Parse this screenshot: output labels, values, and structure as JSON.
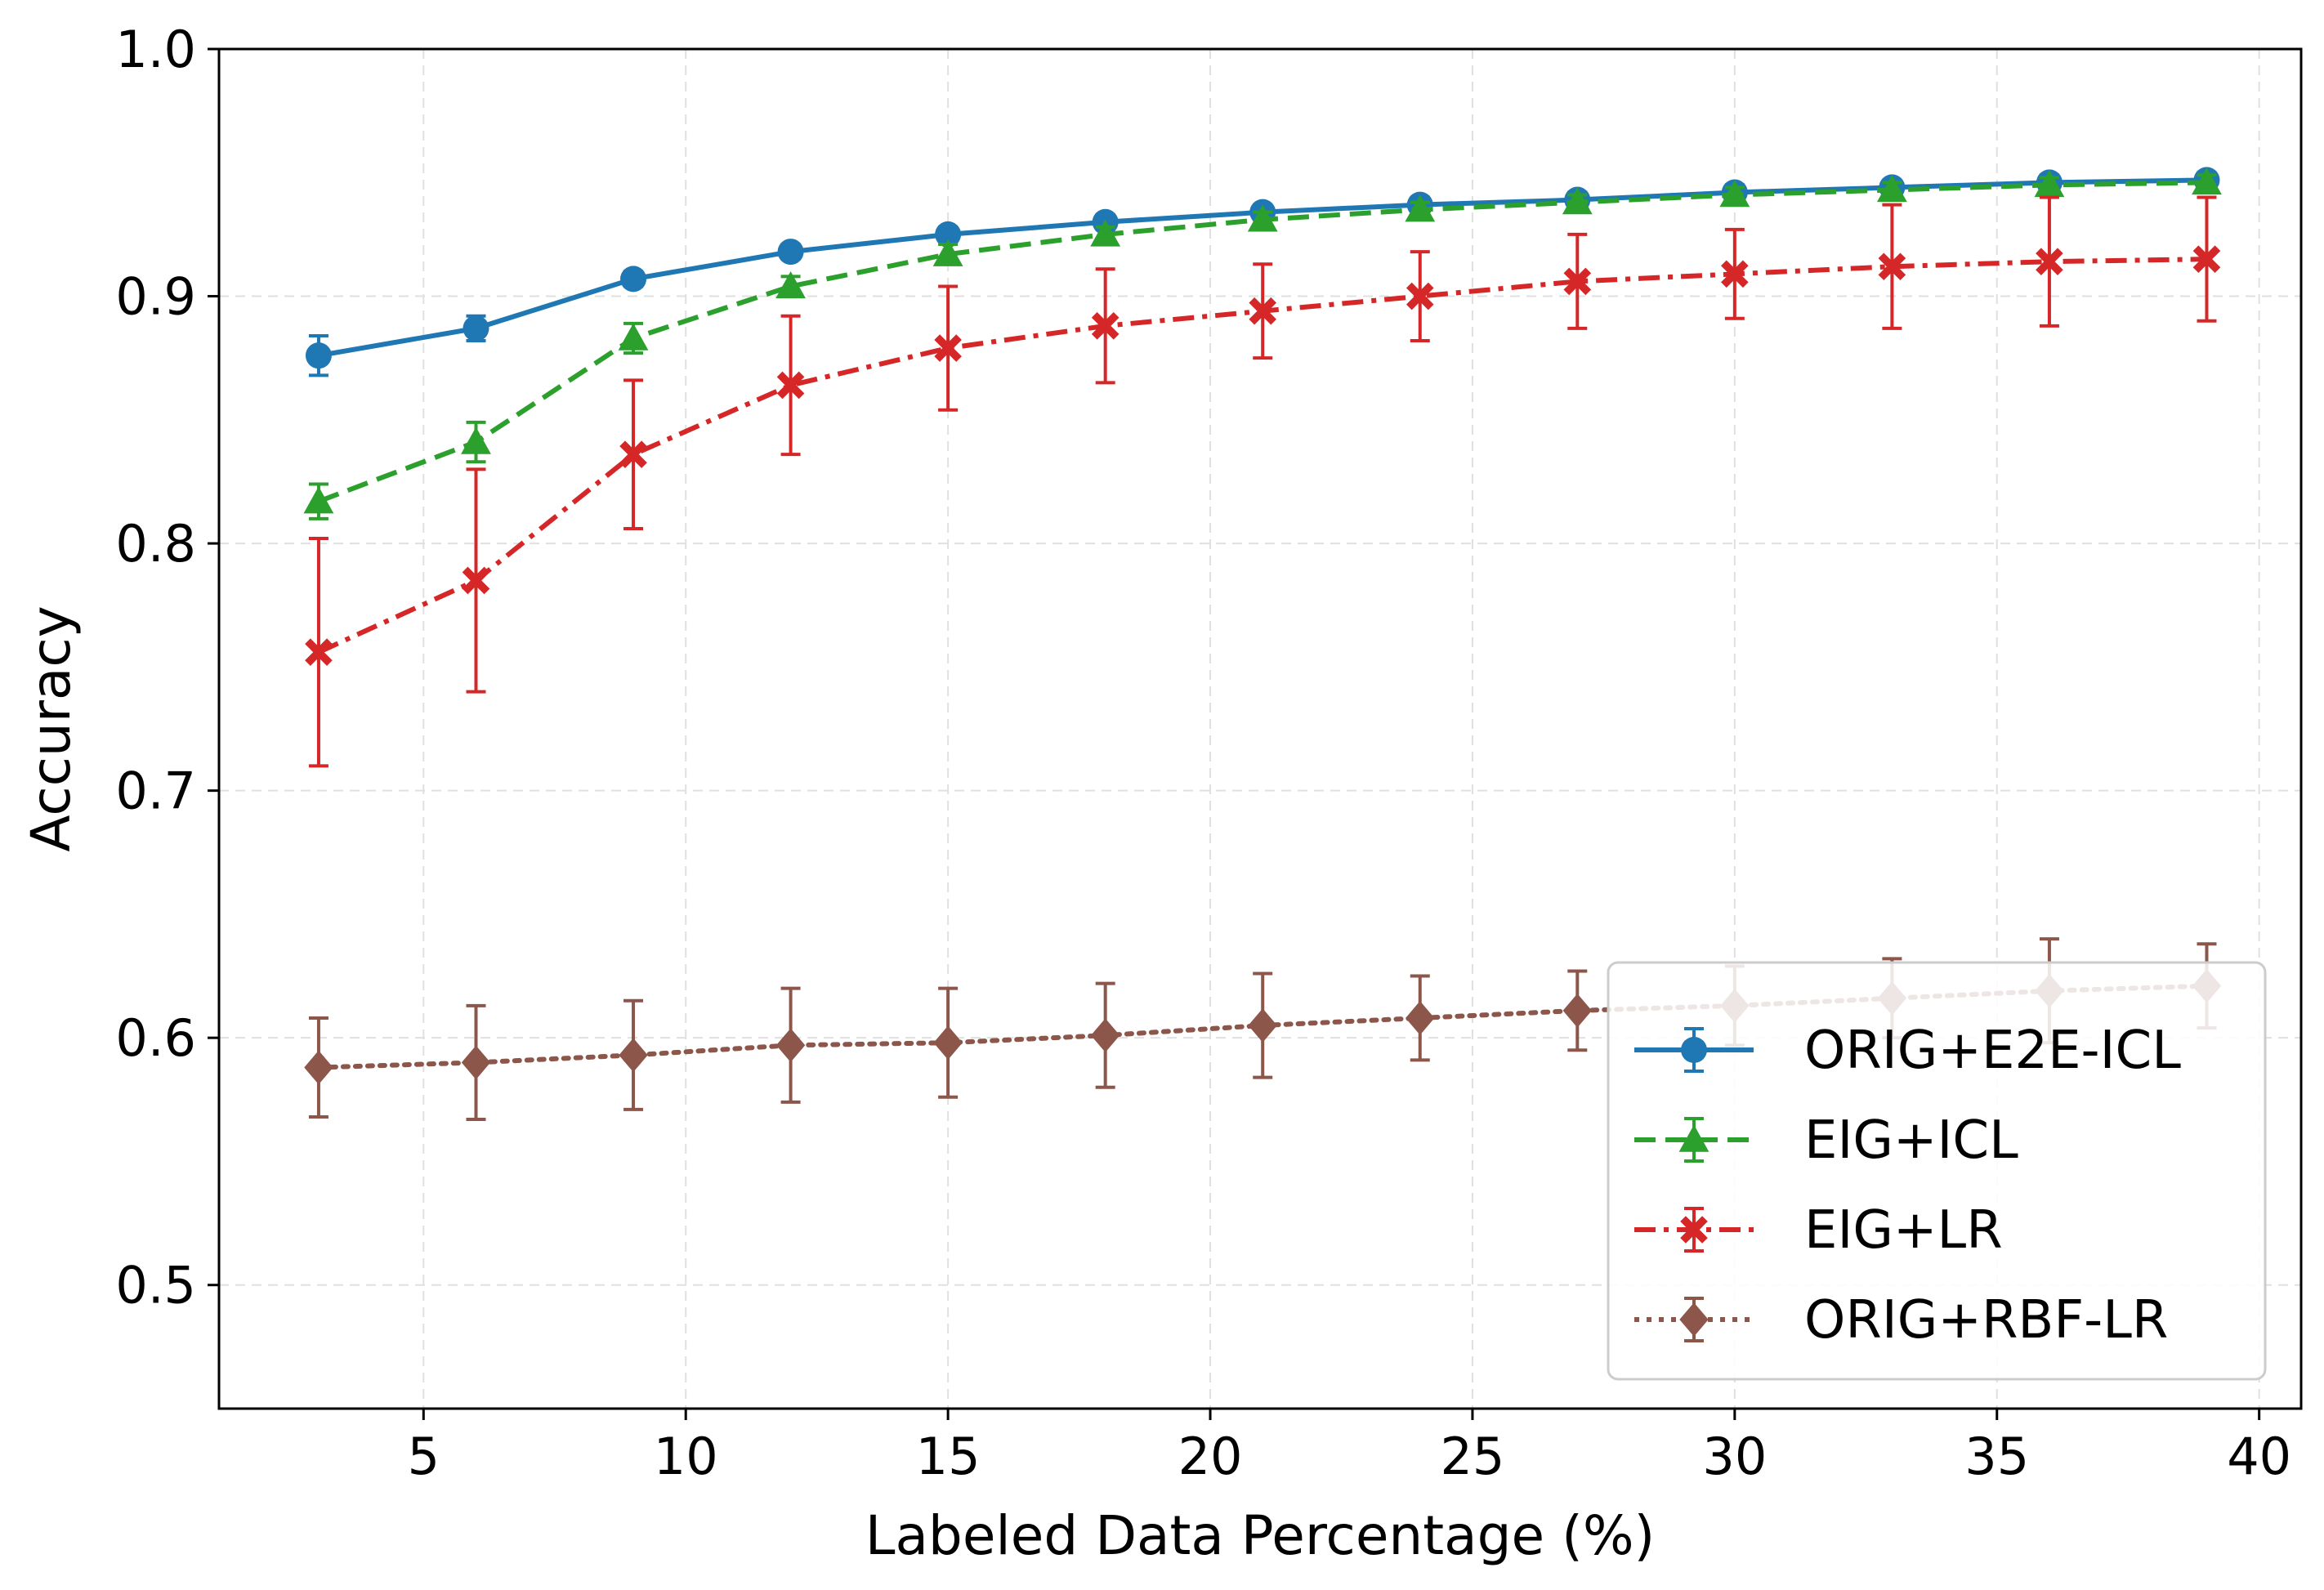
{
  "chart_data": {
    "type": "line",
    "xlabel": "Labeled Data Percentage (%)",
    "ylabel": "Accuracy",
    "xlim": [
      1.1,
      40.8
    ],
    "ylim": [
      0.45,
      1.0
    ],
    "grid": true,
    "legend_position": "bottom-right",
    "x_ticks": [
      5,
      10,
      15,
      20,
      25,
      30,
      35,
      40
    ],
    "x_tick_labels": [
      "5",
      "10",
      "15",
      "20",
      "25",
      "30",
      "35",
      "40"
    ],
    "y_ticks": [
      0.5,
      0.6,
      0.7,
      0.8,
      0.9,
      1.0
    ],
    "y_tick_labels": [
      "0.5",
      "0.6",
      "0.7",
      "0.8",
      "0.9",
      "1.0"
    ],
    "x": [
      3,
      6,
      9,
      12,
      15,
      18,
      21,
      24,
      27,
      30,
      33,
      36,
      39
    ],
    "series": [
      {
        "name": "ORIG+E2E-ICL",
        "color": "#1f77b4",
        "line_style": "solid",
        "marker": "circle",
        "values": [
          0.876,
          0.887,
          0.907,
          0.918,
          0.925,
          0.93,
          0.934,
          0.937,
          0.939,
          0.942,
          0.944,
          0.946,
          0.947
        ],
        "errors": [
          0.008,
          0.005,
          0.003,
          0.003,
          0.003,
          0.003,
          0.003,
          0.003,
          0.003,
          0.003,
          0.003,
          0.003,
          0.003
        ]
      },
      {
        "name": "EIG+ICL",
        "color": "#2ca02c",
        "line_style": "dashed",
        "marker": "triangle",
        "values": [
          0.817,
          0.841,
          0.883,
          0.904,
          0.917,
          0.925,
          0.931,
          0.935,
          0.938,
          0.941,
          0.943,
          0.945,
          0.946
        ],
        "errors": [
          0.007,
          0.008,
          0.006,
          0.004,
          0.004,
          0.003,
          0.003,
          0.003,
          0.003,
          0.003,
          0.003,
          0.003,
          0.003
        ]
      },
      {
        "name": "EIG+LR",
        "color": "#d62728",
        "line_style": "dashdot",
        "marker": "x-filled",
        "values": [
          0.756,
          0.785,
          0.836,
          0.864,
          0.879,
          0.888,
          0.894,
          0.9,
          0.906,
          0.909,
          0.912,
          0.914,
          0.915
        ],
        "errors": [
          0.046,
          0.045,
          0.03,
          0.028,
          0.025,
          0.023,
          0.019,
          0.018,
          0.019,
          0.018,
          0.025,
          0.026,
          0.025
        ]
      },
      {
        "name": "ORIG+RBF-LR",
        "color": "#8c564b",
        "line_style": "dotted",
        "marker": "diamond",
        "values": [
          0.588,
          0.59,
          0.593,
          0.597,
          0.598,
          0.601,
          0.605,
          0.608,
          0.611,
          0.613,
          0.616,
          0.619,
          0.621
        ],
        "errors": [
          0.02,
          0.023,
          0.022,
          0.023,
          0.022,
          0.021,
          0.021,
          0.017,
          0.016,
          0.016,
          0.016,
          0.021,
          0.017
        ]
      }
    ]
  }
}
